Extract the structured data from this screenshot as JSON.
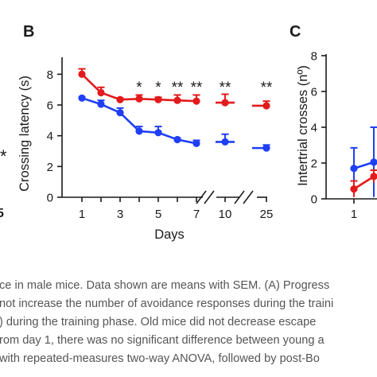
{
  "panel_b": {
    "letter": "B",
    "chart_data": {
      "type": "line",
      "xlabel": "Days",
      "ylabel": "Crossing latency (s)",
      "ylim": [
        0,
        9
      ],
      "yticks": [
        0,
        2,
        4,
        6,
        8
      ],
      "xticks": [
        "1",
        "3",
        "5",
        "7",
        "10",
        "25"
      ],
      "axis_breaks": [
        "after 7",
        "after 10"
      ],
      "grid": false,
      "series": [
        {
          "color": "#e31a1c",
          "points": [
            {
              "day": 1,
              "mean": 8.0,
              "sem": 0.35
            },
            {
              "day": 2,
              "mean": 6.8,
              "sem": 0.35
            },
            {
              "day": 3,
              "mean": 6.35,
              "sem": 0.1
            },
            {
              "day": 4,
              "mean": 6.4,
              "sem": 0.25
            },
            {
              "day": 5,
              "mean": 6.35,
              "sem": 0.15
            },
            {
              "day": 6,
              "mean": 6.3,
              "sem": 0.35
            },
            {
              "day": 7,
              "mean": 6.25,
              "sem": 0.4
            },
            {
              "day": 10,
              "mean": 6.15,
              "sem": 0.55
            },
            {
              "day": 25,
              "mean": 5.95,
              "sem": 0.3
            }
          ]
        },
        {
          "color": "#1f3ff5",
          "points": [
            {
              "day": 1,
              "mean": 6.45,
              "sem": 0.05
            },
            {
              "day": 2,
              "mean": 6.05,
              "sem": 0.25
            },
            {
              "day": 3,
              "mean": 5.5,
              "sem": 0.3
            },
            {
              "day": 4,
              "mean": 4.3,
              "sem": 0.3
            },
            {
              "day": 5,
              "mean": 4.2,
              "sem": 0.4
            },
            {
              "day": 6,
              "mean": 3.75,
              "sem": 0.1
            },
            {
              "day": 7,
              "mean": 3.5,
              "sem": 0.2
            },
            {
              "day": 10,
              "mean": 3.6,
              "sem": 0.5
            },
            {
              "day": 25,
              "mean": 3.2,
              "sem": 0.2
            }
          ]
        }
      ],
      "annotations": [
        {
          "day": 4,
          "text": "*"
        },
        {
          "day": 5,
          "text": "*"
        },
        {
          "day": 6,
          "text": "**"
        },
        {
          "day": 7,
          "text": "**"
        },
        {
          "day": 10,
          "text": "**"
        },
        {
          "day": 25,
          "text": "**"
        }
      ]
    }
  },
  "panel_c": {
    "letter": "C",
    "chart_data": {
      "type": "line",
      "ylabel": "Intertrial crosses (nº)",
      "ylim": [
        0,
        8
      ],
      "yticks": [
        0,
        2,
        4,
        6,
        8
      ],
      "xticks": [
        "1"
      ],
      "grid": false,
      "series": [
        {
          "color": "#1f3ff5",
          "points": [
            {
              "day": 1,
              "mean": 1.7,
              "sem": 1.15
            },
            {
              "day": 2,
              "mean": 2.05,
              "sem": 1.95
            }
          ]
        },
        {
          "color": "#e31a1c",
          "points": [
            {
              "day": 1,
              "mean": 0.55,
              "sem": 0.45
            },
            {
              "day": 2,
              "mean": 1.25,
              "sem": 0.35
            }
          ]
        }
      ]
    }
  },
  "panel_a_fragments": {
    "asterisk": "*",
    "tick": "5"
  },
  "caption_lines": [
    "ce in male mice. Data shown are means with SEM. (A) Progress",
    "not increase the number of avoidance responses during the traini",
    ") during the training phase. Old mice did not decrease escape",
    "rom day 1, there was no significant difference between young a",
    "with repeated-measures two-way ANOVA, followed by post-Bo"
  ]
}
